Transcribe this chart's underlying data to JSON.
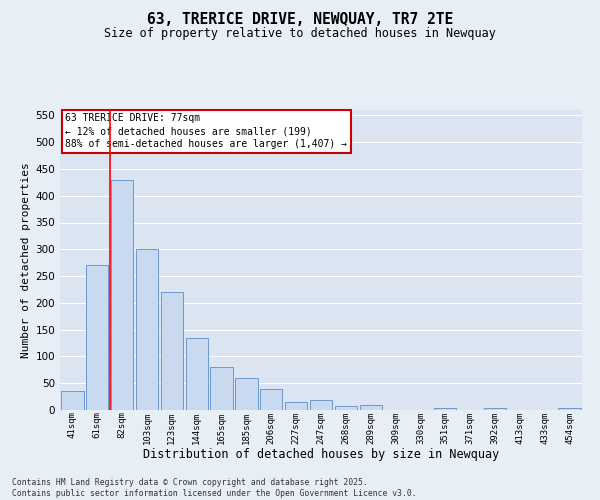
{
  "title": "63, TRERICE DRIVE, NEWQUAY, TR7 2TE",
  "subtitle": "Size of property relative to detached houses in Newquay",
  "xlabel": "Distribution of detached houses by size in Newquay",
  "ylabel": "Number of detached properties",
  "bar_color": "#c9d9ef",
  "bar_edge_color": "#5b8dc8",
  "background_color": "#dbe5f1",
  "fig_background_color": "#e8eef6",
  "grid_color": "#ffffff",
  "categories": [
    "41sqm",
    "61sqm",
    "82sqm",
    "103sqm",
    "123sqm",
    "144sqm",
    "165sqm",
    "185sqm",
    "206sqm",
    "227sqm",
    "247sqm",
    "268sqm",
    "289sqm",
    "309sqm",
    "330sqm",
    "351sqm",
    "371sqm",
    "392sqm",
    "413sqm",
    "433sqm",
    "454sqm"
  ],
  "values": [
    35,
    270,
    430,
    300,
    220,
    135,
    80,
    60,
    40,
    15,
    18,
    8,
    9,
    0,
    0,
    3,
    0,
    4,
    0,
    0,
    3
  ],
  "ylim": [
    0,
    560
  ],
  "yticks": [
    0,
    50,
    100,
    150,
    200,
    250,
    300,
    350,
    400,
    450,
    500,
    550
  ],
  "vline_x_idx": 2,
  "annotation_text": "63 TRERICE DRIVE: 77sqm\n← 12% of detached houses are smaller (199)\n88% of semi-detached houses are larger (1,407) →",
  "annotation_box_color": "#ffffff",
  "annotation_box_edge_color": "#cc0000",
  "footnote1": "Contains HM Land Registry data © Crown copyright and database right 2025.",
  "footnote2": "Contains public sector information licensed under the Open Government Licence v3.0."
}
